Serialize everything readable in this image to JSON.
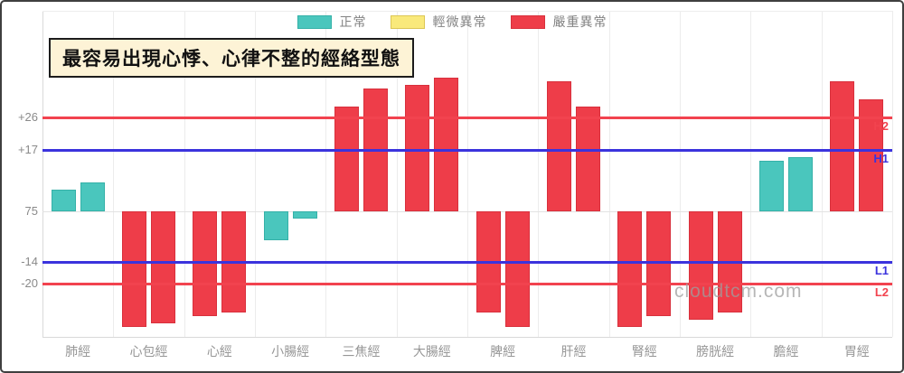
{
  "legend": {
    "items": [
      {
        "label": "正常",
        "status": "normal"
      },
      {
        "label": "輕微異常",
        "status": "mild"
      },
      {
        "label": "嚴重異常",
        "status": "severe"
      }
    ]
  },
  "watermark": "cloudtcm.com",
  "status_colors": {
    "normal": {
      "fill": "#4ac6bd",
      "border": "#35b1a8"
    },
    "mild": {
      "fill": "#f9e97b",
      "border": "#dcc654"
    },
    "severe": {
      "fill": "#ee3d49",
      "border": "#d8303c"
    }
  },
  "chart_data": {
    "type": "bar",
    "title": "最容易出現心悸、心律不整的經絡型態",
    "categories": [
      "肺經",
      "心包經",
      "心經",
      "小腸經",
      "三焦經",
      "大腸經",
      "脾經",
      "肝經",
      "腎經",
      "膀胱經",
      "膽經",
      "胃經"
    ],
    "groups": [
      {
        "name": "肺經",
        "values": [
          6,
          8
        ],
        "status": "normal"
      },
      {
        "name": "心包經",
        "values": [
          -32,
          -31
        ],
        "status": "severe"
      },
      {
        "name": "心經",
        "values": [
          -29,
          -28
        ],
        "status": "severe"
      },
      {
        "name": "小腸經",
        "values": [
          -8,
          -2
        ],
        "status": "normal"
      },
      {
        "name": "三焦經",
        "values": [
          29,
          34
        ],
        "status": "severe"
      },
      {
        "name": "大腸經",
        "values": [
          35,
          37
        ],
        "status": "severe"
      },
      {
        "name": "脾經",
        "values": [
          -28,
          -32
        ],
        "status": "severe"
      },
      {
        "name": "肝經",
        "values": [
          36,
          29
        ],
        "status": "severe"
      },
      {
        "name": "腎經",
        "values": [
          -32,
          -29
        ],
        "status": "severe"
      },
      {
        "name": "膀胱經",
        "values": [
          -30,
          -28
        ],
        "status": "severe"
      },
      {
        "name": "膽經",
        "values": [
          14,
          15
        ],
        "status": "normal"
      },
      {
        "name": "胃經",
        "values": [
          36,
          31
        ],
        "status": "severe"
      }
    ],
    "y_axis_ticks": [
      {
        "label": "+26",
        "value": 26
      },
      {
        "label": "+17",
        "value": 17
      },
      {
        "label": "75",
        "value": 0
      },
      {
        "label": "-14",
        "value": -14
      },
      {
        "label": "-20",
        "value": -20
      }
    ],
    "reference_lines": [
      {
        "label": "H2",
        "value": 26,
        "color": "#f2434f"
      },
      {
        "label": "H1",
        "value": 17,
        "color": "#3b33dd"
      },
      {
        "label": "L1",
        "value": -14,
        "color": "#3b33dd"
      },
      {
        "label": "L2",
        "value": -20,
        "color": "#f2434f"
      }
    ],
    "ylim": [
      -40,
      42
    ],
    "grid": true,
    "legend_position": "top"
  }
}
